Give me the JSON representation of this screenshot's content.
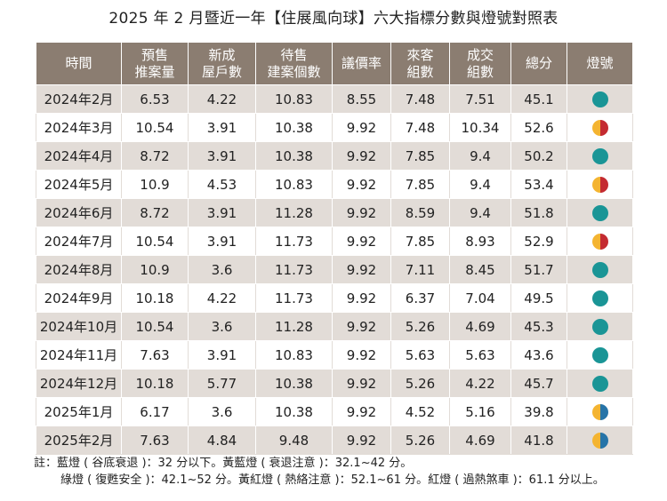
{
  "title": "2025 年 2 月暨近一年【住展風向球】六大指標分數與燈號對照表",
  "colors": {
    "header_bg": "#8b7d71",
    "stripe_bg": "#e2dcd7",
    "green": "#1a9596",
    "blue": "#2674a8",
    "yellow": "#f4b431",
    "red": "#c42b31"
  },
  "headers": [
    [
      "時間"
    ],
    [
      "預售",
      "推案量"
    ],
    [
      "新成",
      "屋戶數"
    ],
    [
      "待售",
      "建案個數"
    ],
    [
      "議價率"
    ],
    [
      "來客",
      "組數"
    ],
    [
      "成交",
      "組數"
    ],
    [
      "總分"
    ],
    [
      "燈號"
    ]
  ],
  "rows": [
    {
      "time": "2024年2月",
      "presale": "6.53",
      "new_units": "4.22",
      "for_sale": "10.83",
      "bargain": "8.55",
      "visitors": "7.48",
      "deals": "7.51",
      "total": "45.1",
      "light": "green"
    },
    {
      "time": "2024年3月",
      "presale": "10.54",
      "new_units": "3.91",
      "for_sale": "10.38",
      "bargain": "9.92",
      "visitors": "7.48",
      "deals": "10.34",
      "total": "52.6",
      "light": "yellow-red"
    },
    {
      "time": "2024年4月",
      "presale": "8.72",
      "new_units": "3.91",
      "for_sale": "10.38",
      "bargain": "9.92",
      "visitors": "7.85",
      "deals": "9.4",
      "total": "50.2",
      "light": "green"
    },
    {
      "time": "2024年5月",
      "presale": "10.9",
      "new_units": "4.53",
      "for_sale": "10.83",
      "bargain": "9.92",
      "visitors": "7.85",
      "deals": "9.4",
      "total": "53.4",
      "light": "yellow-red"
    },
    {
      "time": "2024年6月",
      "presale": "8.72",
      "new_units": "3.91",
      "for_sale": "11.28",
      "bargain": "9.92",
      "visitors": "8.59",
      "deals": "9.4",
      "total": "51.8",
      "light": "green"
    },
    {
      "time": "2024年7月",
      "presale": "10.54",
      "new_units": "3.91",
      "for_sale": "11.73",
      "bargain": "9.92",
      "visitors": "7.85",
      "deals": "8.93",
      "total": "52.9",
      "light": "yellow-red"
    },
    {
      "time": "2024年8月",
      "presale": "10.9",
      "new_units": "3.6",
      "for_sale": "11.73",
      "bargain": "9.92",
      "visitors": "7.11",
      "deals": "8.45",
      "total": "51.7",
      "light": "green"
    },
    {
      "time": "2024年9月",
      "presale": "10.18",
      "new_units": "4.22",
      "for_sale": "11.73",
      "bargain": "9.92",
      "visitors": "6.37",
      "deals": "7.04",
      "total": "49.5",
      "light": "green"
    },
    {
      "time": "2024年10月",
      "presale": "10.54",
      "new_units": "3.6",
      "for_sale": "11.28",
      "bargain": "9.92",
      "visitors": "5.26",
      "deals": "4.69",
      "total": "45.3",
      "light": "green"
    },
    {
      "time": "2024年11月",
      "presale": "7.63",
      "new_units": "3.91",
      "for_sale": "10.83",
      "bargain": "9.92",
      "visitors": "5.63",
      "deals": "5.63",
      "total": "43.6",
      "light": "green"
    },
    {
      "time": "2024年12月",
      "presale": "10.18",
      "new_units": "5.77",
      "for_sale": "10.38",
      "bargain": "9.92",
      "visitors": "5.26",
      "deals": "4.22",
      "total": "45.7",
      "light": "green"
    },
    {
      "time": "2025年1月",
      "presale": "6.17",
      "new_units": "3.6",
      "for_sale": "10.38",
      "bargain": "9.92",
      "visitors": "4.52",
      "deals": "5.16",
      "total": "39.8",
      "light": "yellow-blue"
    },
    {
      "time": "2025年2月",
      "presale": "7.63",
      "new_units": "4.84",
      "for_sale": "9.48",
      "bargain": "9.92",
      "visitors": "5.26",
      "deals": "4.69",
      "total": "41.8",
      "light": "yellow-blue"
    }
  ],
  "notes": {
    "line1": "註：藍燈 ( 谷底衰退 )：32 分以下。黃藍燈 ( 衰退注意 )：32.1~42 分。",
    "line2": "綠燈 ( 復甦安全 )：42.1~52 分。黃紅燈 ( 熱絡注意 )：52.1~61 分。紅燈 ( 過熱煞車 )：61.1 分以上。"
  }
}
